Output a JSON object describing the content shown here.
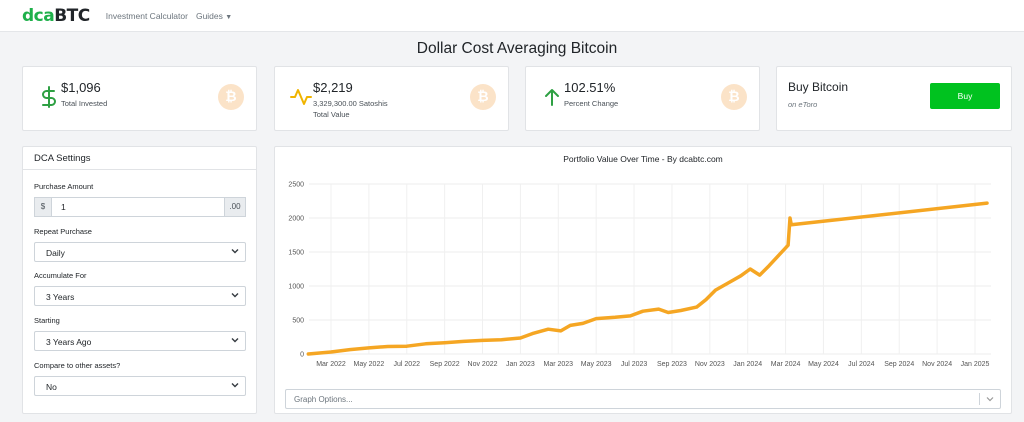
{
  "nav": {
    "logo_part1": "dca",
    "logo_part2": "BTC",
    "links": [
      {
        "label": "Investment Calculator"
      },
      {
        "label": "Guides"
      }
    ]
  },
  "page_title": "Dollar Cost Averaging Bitcoin",
  "stats": [
    {
      "value": "$1,096",
      "sub1": "Total Invested",
      "sub2": "",
      "icon": "dollar-icon",
      "color": "#2ea043"
    },
    {
      "value": "$2,219",
      "sub1": "3,329,300.00 Satoshis",
      "sub2": "Total Value",
      "icon": "activity-icon",
      "color": "#f0b400"
    },
    {
      "value": "102.51%",
      "sub1": "Percent Change",
      "sub2": "",
      "icon": "arrow-up-icon",
      "color": "#2ea043"
    }
  ],
  "btc_symbol": "₿",
  "buy": {
    "title": "Buy Bitcoin",
    "subtitle": "on eToro",
    "button": "Buy",
    "button_color": "#00c21f"
  },
  "settings": {
    "title": "DCA Settings",
    "purchase_amount_label": "Purchase Amount",
    "currency_prefix": "$",
    "amount_value": "1",
    "amount_suffix": ".00",
    "repeat_label": "Repeat Purchase",
    "repeat_value": "Daily",
    "accumulate_label": "Accumulate For",
    "accumulate_value": "3 Years",
    "starting_label": "Starting",
    "starting_value": "3 Years Ago",
    "compare_label": "Compare to other assets?",
    "compare_value": "No"
  },
  "graph_options_placeholder": "Graph Options...",
  "chart_data": {
    "type": "line",
    "title": "Portfolio Value Over Time - By dcabtc.com",
    "xlabel": "",
    "ylabel": "",
    "ylim": [
      0,
      2500
    ],
    "yticks": [
      0,
      500,
      1000,
      1500,
      2000,
      2500
    ],
    "xticks": [
      "Mar 2022",
      "May 2022",
      "Jul 2022",
      "Sep 2022",
      "Nov 2022",
      "Jan 2023",
      "Mar 2023",
      "May 2023",
      "Jul 2023",
      "Sep 2023",
      "Nov 2023",
      "Jan 2024",
      "Mar 2024",
      "May 2024",
      "Jul 2024",
      "Sep 2024",
      "Nov 2024",
      "Jan 2025"
    ],
    "grid": true,
    "line_color": "#f5a623",
    "series": [
      {
        "name": "",
        "x": [
          "2022-01-25",
          "2022-03-01",
          "2022-04-01",
          "2022-05-01",
          "2022-06-01",
          "2022-07-01",
          "2022-08-01",
          "2022-09-01",
          "2022-10-01",
          "2022-11-01",
          "2022-12-01",
          "2023-01-01",
          "2023-01-20",
          "2023-02-15",
          "2023-03-05",
          "2023-03-20",
          "2023-04-10",
          "2023-05-01",
          "2023-06-01",
          "2023-06-25",
          "2023-07-15",
          "2023-08-10",
          "2023-08-25",
          "2023-09-15",
          "2023-10-10",
          "2023-10-25",
          "2023-11-10",
          "2023-12-01",
          "2023-12-20",
          "2024-01-05",
          "2024-01-20",
          "2024-02-05",
          "2024-02-20",
          "2024-03-01",
          "2024-03-05",
          "2024-03-08",
          "2024-03-10",
          "2025-01-20"
        ],
        "y": [
          0,
          30,
          65,
          90,
          110,
          115,
          150,
          165,
          185,
          200,
          210,
          235,
          300,
          365,
          340,
          420,
          450,
          520,
          540,
          560,
          630,
          660,
          610,
          640,
          690,
          800,
          940,
          1050,
          1150,
          1250,
          1160,
          1300,
          1450,
          1560,
          1600,
          2000,
          1900,
          2219
        ]
      }
    ]
  }
}
